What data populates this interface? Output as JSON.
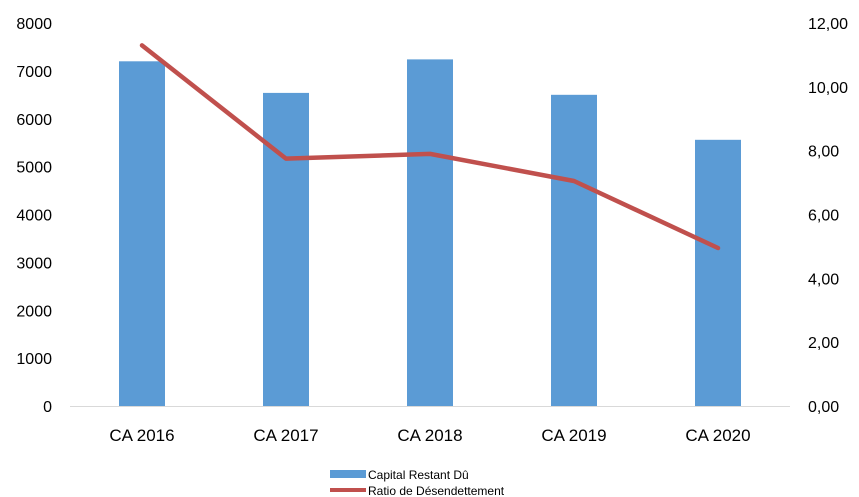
{
  "chart_data": {
    "type": "bar",
    "categories": [
      "CA 2016",
      "CA 2017",
      "CA 2018",
      "CA 2019",
      "CA 2020"
    ],
    "series": [
      {
        "name": "Capital Restant Dû",
        "type": "bar",
        "axis": "left",
        "color": "#5b9bd5",
        "values": [
          7200,
          6540,
          7240,
          6500,
          5560
        ]
      },
      {
        "name": "Ratio de Désendettement",
        "type": "line",
        "axis": "right",
        "color": "#c0504d",
        "values": [
          11.3,
          7.75,
          7.9,
          7.05,
          4.95
        ]
      }
    ],
    "y_left": {
      "ylim": [
        0,
        8000
      ],
      "ticks": [
        "0",
        "1000",
        "2000",
        "3000",
        "4000",
        "5000",
        "6000",
        "7000",
        "8000"
      ]
    },
    "y_right": {
      "ylim": [
        0,
        12
      ],
      "ticks": [
        "0,00",
        "2,00",
        "4,00",
        "6,00",
        "8,00",
        "10,00",
        "12,00"
      ]
    },
    "legend_position": "bottom",
    "grid": false
  }
}
